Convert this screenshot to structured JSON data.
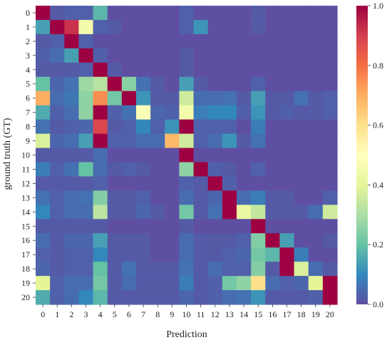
{
  "chart_data": {
    "type": "heatmap",
    "xlabel": "Prediction",
    "ylabel": "ground truth (GT)",
    "x_categories": [
      "0",
      "1",
      "2",
      "3",
      "4",
      "5",
      "6",
      "7",
      "8",
      "9",
      "10",
      "11",
      "12",
      "13",
      "14",
      "15",
      "16",
      "17",
      "18",
      "19",
      "20"
    ],
    "y_categories": [
      "0",
      "1",
      "2",
      "3",
      "4",
      "5",
      "6",
      "7",
      "8",
      "9",
      "10",
      "11",
      "12",
      "13",
      "14",
      "15",
      "16",
      "17",
      "18",
      "19",
      "20"
    ],
    "colorbar": {
      "range": [
        0.0,
        1.0
      ],
      "ticks": [
        "0.0",
        "0.2",
        "0.4",
        "0.6",
        "0.8",
        "1.0"
      ],
      "colormap": "Spectral_r"
    },
    "grid": false,
    "values": [
      [
        1.0,
        0.02,
        0.03,
        0.03,
        0.18,
        0,
        0,
        0,
        0,
        0,
        0.03,
        0,
        0,
        0,
        0,
        0.02,
        0,
        0,
        0,
        0,
        0
      ],
      [
        0.14,
        1.0,
        0.92,
        0.45,
        0.03,
        0.02,
        0,
        0,
        0,
        0,
        0.03,
        0.12,
        0,
        0,
        0,
        0.02,
        0,
        0,
        0,
        0,
        0
      ],
      [
        0.02,
        0.03,
        1.0,
        0.03,
        0,
        0,
        0,
        0,
        0,
        0,
        0,
        0,
        0,
        0,
        0,
        0,
        0,
        0,
        0,
        0,
        0
      ],
      [
        0.03,
        0.05,
        0.14,
        1.0,
        0.03,
        0,
        0,
        0,
        0,
        0,
        0.02,
        0,
        0,
        0,
        0,
        0,
        0,
        0,
        0,
        0,
        0
      ],
      [
        0.02,
        0.02,
        0.02,
        0.03,
        1.0,
        0.02,
        0,
        0,
        0,
        0,
        0.02,
        0,
        0,
        0,
        0,
        0,
        0,
        0,
        0,
        0,
        0
      ],
      [
        0.2,
        0.04,
        0.06,
        0.28,
        0.32,
        1.0,
        0.25,
        0.06,
        0.02,
        0,
        0.14,
        0.02,
        0,
        0,
        0,
        0.03,
        0,
        0,
        0,
        0,
        0
      ],
      [
        0.7,
        0.05,
        0.07,
        0.26,
        0.75,
        0.22,
        1.0,
        0.12,
        0.02,
        0.02,
        0.36,
        0.05,
        0.05,
        0.06,
        0.02,
        0.14,
        0.02,
        0.02,
        0.06,
        0.02,
        0.03
      ],
      [
        0.16,
        0.03,
        0.05,
        0.26,
        1.0,
        0.03,
        0.06,
        0.48,
        0.04,
        0.03,
        0.45,
        0.08,
        0.1,
        0.1,
        0.03,
        0.12,
        0.02,
        0.03,
        0.02,
        0.02,
        0.03
      ],
      [
        0.06,
        0.02,
        0.03,
        0.04,
        0.88,
        0.02,
        0.03,
        0.1,
        0.03,
        0.12,
        1.0,
        0.03,
        0.03,
        0.03,
        0,
        0.08,
        0,
        0,
        0,
        0,
        0
      ],
      [
        0.38,
        0.04,
        0.05,
        0.14,
        1.0,
        0.03,
        0.03,
        0.05,
        0.05,
        0.68,
        0.36,
        0.03,
        0.05,
        0.12,
        0.02,
        0.06,
        0,
        0,
        0,
        0,
        0
      ],
      [
        0.02,
        0.02,
        0.02,
        0.02,
        0.05,
        0,
        0,
        0,
        0,
        0,
        1.0,
        0,
        0,
        0,
        0,
        0,
        0,
        0,
        0,
        0,
        0
      ],
      [
        0.08,
        0.03,
        0.06,
        0.2,
        0.05,
        0.02,
        0.03,
        0.02,
        0,
        0,
        0.26,
        1.0,
        0.03,
        0.02,
        0,
        0.03,
        0,
        0,
        0,
        0,
        0
      ],
      [
        0.02,
        0.02,
        0.02,
        0.02,
        0.03,
        0,
        0,
        0,
        0,
        0,
        0.03,
        0.02,
        1.0,
        0.03,
        0,
        0,
        0,
        0,
        0,
        0,
        0
      ],
      [
        0.06,
        0.03,
        0.05,
        0.06,
        0.24,
        0.02,
        0.02,
        0.03,
        0,
        0,
        0.05,
        0.02,
        0.04,
        1.0,
        0.05,
        0.08,
        0.02,
        0.02,
        0,
        0,
        0.03
      ],
      [
        0.1,
        0.03,
        0.05,
        0.05,
        0.33,
        0.02,
        0.02,
        0.04,
        0.02,
        0,
        0.22,
        0.02,
        0.06,
        1.0,
        0.42,
        0.34,
        0.02,
        0.02,
        0.02,
        0.05,
        0.36
      ],
      [
        0.02,
        0.02,
        0.02,
        0.02,
        0.02,
        0,
        0,
        0,
        0,
        0,
        0.02,
        0,
        0,
        0,
        0,
        1.0,
        0,
        0,
        0,
        0,
        0
      ],
      [
        0.05,
        0.02,
        0.04,
        0.04,
        0.14,
        0.02,
        0.02,
        0.02,
        0,
        0,
        0.05,
        0.02,
        0.02,
        0.02,
        0.03,
        0.24,
        1.0,
        0.14,
        0,
        0,
        0.02
      ],
      [
        0.03,
        0.02,
        0.03,
        0.03,
        0.1,
        0.02,
        0.02,
        0.02,
        0,
        0,
        0.05,
        0.02,
        0.02,
        0.03,
        0.04,
        0.22,
        0.18,
        1.0,
        0.08,
        0,
        0
      ],
      [
        0.04,
        0.02,
        0.03,
        0.03,
        0.2,
        0.02,
        0.06,
        0.02,
        0.02,
        0.02,
        0.06,
        0.02,
        0.05,
        0.03,
        0.03,
        0.24,
        0.02,
        1.0,
        0.38,
        0.05,
        0.02
      ],
      [
        0.4,
        0.03,
        0.05,
        0.05,
        0.22,
        0.02,
        0.05,
        0.02,
        0.02,
        0.02,
        0.08,
        0.02,
        0.03,
        0.22,
        0.26,
        0.6,
        0.05,
        0.03,
        0.04,
        0.4,
        1.0
      ],
      [
        0.16,
        0.03,
        0.05,
        0.1,
        0.18,
        0.02,
        0.02,
        0.02,
        0.02,
        0.02,
        0.04,
        0.02,
        0.03,
        0.05,
        0.06,
        0.12,
        0.02,
        0.02,
        0.02,
        0.03,
        1.0
      ]
    ]
  }
}
